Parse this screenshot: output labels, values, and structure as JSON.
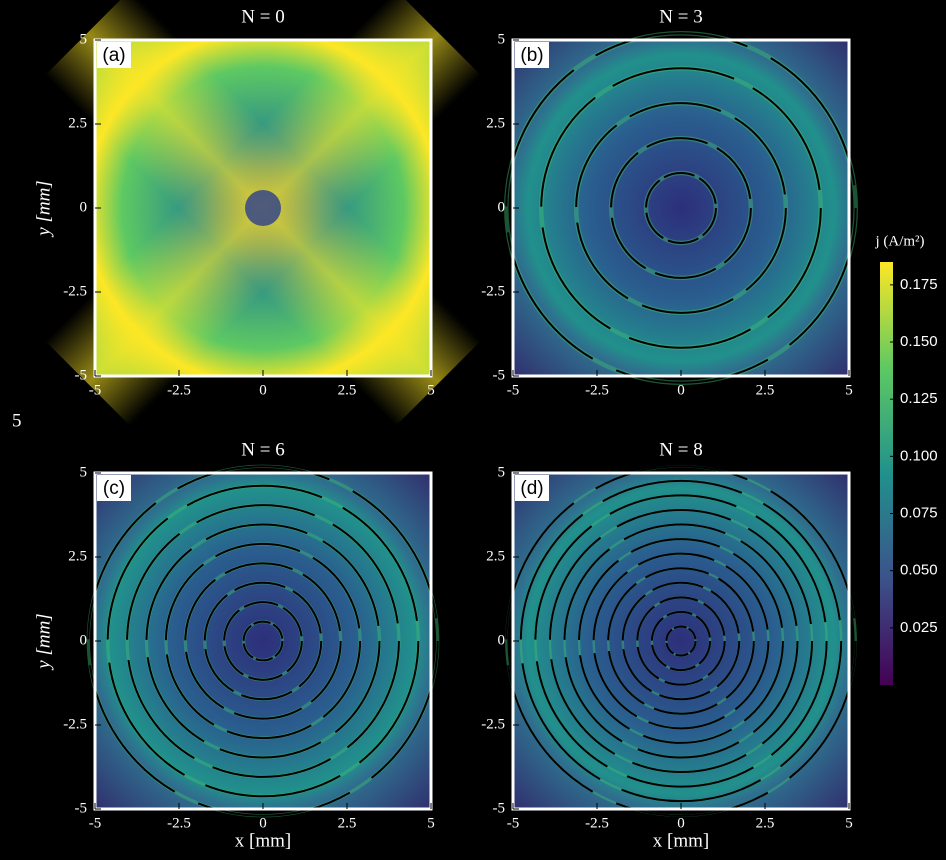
{
  "chart_data": [
    {
      "type": "heatmap",
      "title": "N = 0",
      "panel_label": "(a)",
      "ylabel": "y [mm]",
      "xlim": [
        -5,
        5
      ],
      "ylim": [
        -5,
        5
      ],
      "xticks": [
        -5,
        -2.5,
        0,
        2.5,
        5
      ],
      "yticks": [
        -5,
        -2.5,
        0,
        2.5,
        5
      ]
    },
    {
      "type": "heatmap",
      "title": "N = 3",
      "panel_label": "(b)",
      "xlim": [
        -5,
        5
      ],
      "ylim": [
        -5,
        5
      ],
      "xticks": [
        -5,
        -2.5,
        0,
        2.5,
        5
      ],
      "yticks": [
        -5,
        -2.5,
        0,
        2.5,
        5
      ]
    },
    {
      "type": "heatmap",
      "title": "N = 6",
      "panel_label": "(c)",
      "ylabel": "y [mm]",
      "xlabel": "x [mm]",
      "xlim": [
        -5,
        5
      ],
      "ylim": [
        -5,
        5
      ],
      "xticks": [
        -5,
        -2.5,
        0,
        2.5,
        5
      ],
      "yticks": [
        -5,
        -2.5,
        0,
        2.5,
        5
      ]
    },
    {
      "type": "heatmap",
      "title": "N = 8",
      "panel_label": "(d)",
      "xlabel": "x [mm]",
      "xlim": [
        -5,
        5
      ],
      "ylim": [
        -5,
        5
      ],
      "xticks": [
        -5,
        -2.5,
        0,
        2.5,
        5
      ],
      "yticks": [
        -5,
        -2.5,
        0,
        2.5,
        5
      ]
    },
    {
      "type": "colorbar",
      "label": "j (A/m²)",
      "lim": [
        0,
        0.185
      ],
      "colors": [
        "#440154",
        "#3b528b",
        "#21918c",
        "#5ec962",
        "#fde725"
      ],
      "ticks": [
        0.025,
        {
          "value": 0.05,
          "label": "0.050"
        },
        0.075,
        {
          "value": 0.1,
          "label": "0.100"
        },
        0.125,
        {
          "value": 0.15,
          "label": "0.150"
        },
        0.175
      ]
    }
  ],
  "stray_label": "5"
}
